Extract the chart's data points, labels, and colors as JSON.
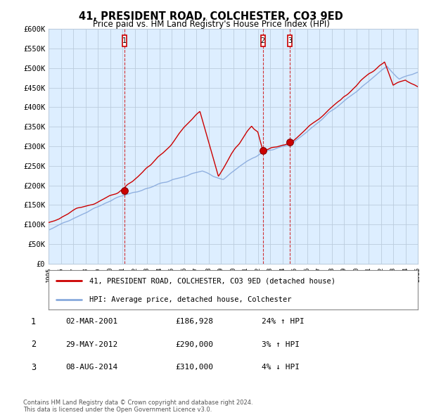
{
  "title": "41, PRESIDENT ROAD, COLCHESTER, CO3 9ED",
  "subtitle": "Price paid vs. HM Land Registry's House Price Index (HPI)",
  "ylabel_ticks": [
    "£0",
    "£50K",
    "£100K",
    "£150K",
    "£200K",
    "£250K",
    "£300K",
    "£350K",
    "£400K",
    "£450K",
    "£500K",
    "£550K",
    "£600K"
  ],
  "ylim": [
    0,
    600000
  ],
  "ytick_vals": [
    0,
    50000,
    100000,
    150000,
    200000,
    250000,
    300000,
    350000,
    400000,
    450000,
    500000,
    550000,
    600000
  ],
  "sale_points": [
    {
      "num": "1",
      "year": 2001.17,
      "price": 186928
    },
    {
      "num": "2",
      "year": 2012.41,
      "price": 290000
    },
    {
      "num": "3",
      "year": 2014.59,
      "price": 310000
    }
  ],
  "legend_entries": [
    "41, PRESIDENT ROAD, COLCHESTER, CO3 9ED (detached house)",
    "HPI: Average price, detached house, Colchester"
  ],
  "table_rows": [
    {
      "num": "1",
      "date": "02-MAR-2001",
      "price": "£186,928",
      "hpi": "24% ↑ HPI"
    },
    {
      "num": "2",
      "date": "29-MAY-2012",
      "price": "£290,000",
      "hpi": "3% ↑ HPI"
    },
    {
      "num": "3",
      "date": "08-AUG-2014",
      "price": "£310,000",
      "hpi": "4% ↓ HPI"
    }
  ],
  "footnote": "Contains HM Land Registry data © Crown copyright and database right 2024.\nThis data is licensed under the Open Government Licence v3.0.",
  "line_color_red": "#cc0000",
  "line_color_blue": "#88aadd",
  "vline_color": "#cc0000",
  "bg_chart": "#ddeeff",
  "background_color": "#ffffff",
  "grid_color": "#bbccdd"
}
